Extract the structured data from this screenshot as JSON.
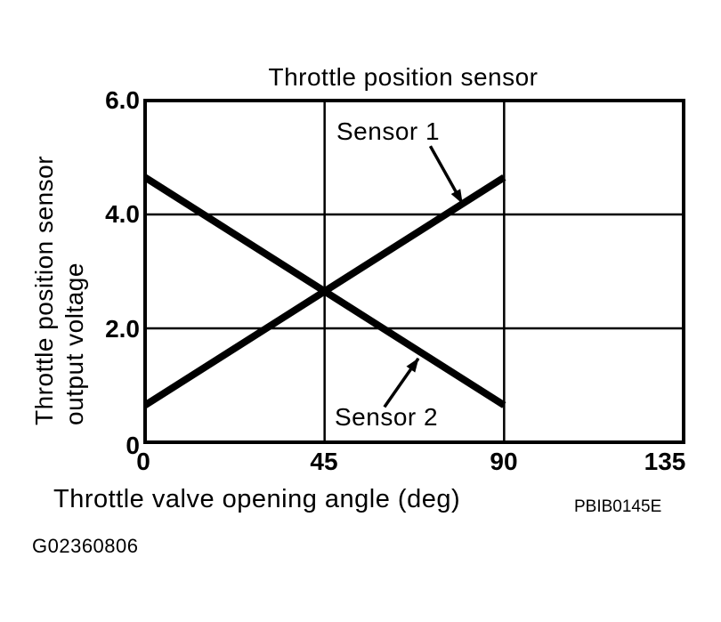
{
  "figure": {
    "title": "Throttle position sensor",
    "x_axis_title": "Throttle valve opening angle (deg)",
    "y_axis_title_line1": "Throttle position sensor",
    "y_axis_title_line2": "output voltage",
    "reference_code": "PBIB0145E",
    "figure_id": "G02360806"
  },
  "chart_data": {
    "type": "line",
    "title": "Throttle position sensor",
    "xlabel": "Throttle valve opening angle (deg)",
    "ylabel": "Throttle position sensor output voltage",
    "xlim": [
      0,
      135
    ],
    "ylim": [
      0,
      6
    ],
    "x_ticks": [
      0,
      45,
      90,
      135
    ],
    "x_tick_labels": [
      "0",
      "45",
      "90",
      "135"
    ],
    "y_ticks": [
      0,
      2,
      4,
      6
    ],
    "y_tick_labels": [
      "0",
      "2.0",
      "4.0",
      "6.0"
    ],
    "grid": true,
    "legend_position": "none",
    "line_color": "#000000",
    "background": "#ffffff",
    "series": [
      {
        "name": "Sensor 1",
        "x": [
          0,
          90
        ],
        "y": [
          0.65,
          4.65
        ]
      },
      {
        "name": "Sensor 2",
        "x": [
          0,
          90
        ],
        "y": [
          4.65,
          0.65
        ]
      }
    ],
    "crossing_point": {
      "x": 45,
      "y": 2.65
    },
    "annotations": [
      {
        "text": "Sensor 1",
        "arrow_from": {
          "x": 71.5,
          "y": 5.2
        },
        "arrow_to": {
          "x": 79.5,
          "y": 4.2
        }
      },
      {
        "text": "Sensor 2",
        "arrow_from": {
          "x": 60.0,
          "y": 0.62
        },
        "arrow_to": {
          "x": 68.5,
          "y": 1.47
        }
      }
    ]
  }
}
